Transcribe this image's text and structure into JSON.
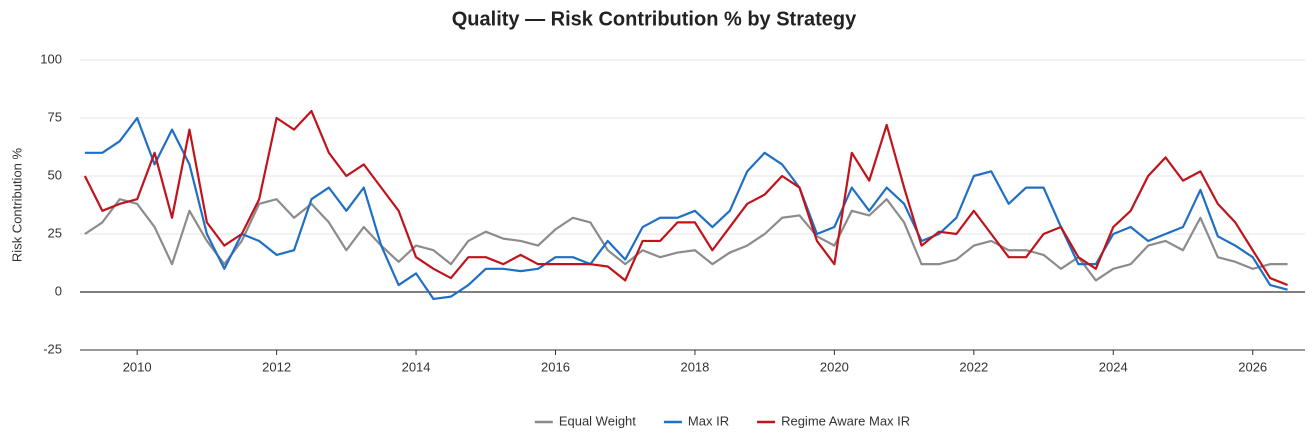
{
  "chart_data": {
    "type": "line",
    "title": "Quality — Risk Contribution % by Strategy",
    "ylabel": "Risk Contribution %",
    "x": [
      2009.25,
      2009.5,
      2009.75,
      2010,
      2010.25,
      2010.5,
      2010.75,
      2011,
      2011.25,
      2011.5,
      2011.75,
      2012,
      2012.25,
      2012.5,
      2012.75,
      2013,
      2013.25,
      2013.5,
      2013.75,
      2014,
      2014.25,
      2014.5,
      2014.75,
      2015,
      2015.25,
      2015.5,
      2015.75,
      2016,
      2016.25,
      2016.5,
      2016.75,
      2017,
      2017.25,
      2017.5,
      2017.75,
      2018,
      2018.25,
      2018.5,
      2018.75,
      2019,
      2019.25,
      2019.5,
      2019.75,
      2020,
      2020.25,
      2020.5,
      2020.75,
      2021,
      2021.25,
      2021.5,
      2021.75,
      2022,
      2022.25,
      2022.5,
      2022.75,
      2023,
      2023.25,
      2023.5,
      2023.75,
      2024,
      2024.25,
      2024.5,
      2024.75,
      2025,
      2025.25,
      2025.5,
      2025.75,
      2026,
      2026.25,
      2026.5
    ],
    "series": [
      {
        "name": "Equal Weight",
        "color": "#8c8c8c",
        "values": [
          25,
          30,
          40,
          38,
          28,
          12,
          35,
          22,
          12,
          22,
          38,
          40,
          32,
          38,
          30,
          18,
          28,
          20,
          13,
          20,
          18,
          12,
          22,
          26,
          23,
          22,
          20,
          27,
          32,
          30,
          18,
          12,
          18,
          15,
          17,
          18,
          12,
          17,
          20,
          25,
          32,
          33,
          24,
          20,
          35,
          33,
          40,
          30,
          12,
          12,
          14,
          20,
          22,
          18,
          18,
          16,
          10,
          15,
          5,
          10,
          12,
          20,
          22,
          18,
          32,
          15,
          13,
          10,
          12,
          12
        ]
      },
      {
        "name": "Max IR",
        "color": "#1f6fc5",
        "values": [
          60,
          60,
          65,
          75,
          55,
          70,
          55,
          25,
          10,
          25,
          22,
          16,
          18,
          40,
          45,
          35,
          45,
          20,
          3,
          8,
          -3,
          -2,
          3,
          10,
          10,
          9,
          10,
          15,
          15,
          12,
          22,
          14,
          28,
          32,
          32,
          35,
          28,
          35,
          52,
          60,
          55,
          45,
          25,
          28,
          45,
          35,
          45,
          38,
          22,
          25,
          32,
          50,
          52,
          38,
          45,
          45,
          28,
          12,
          12,
          25,
          28,
          22,
          25,
          28,
          44,
          24,
          20,
          15,
          3,
          1
        ]
      },
      {
        "name": "Regime Aware Max IR",
        "color": "#c0141c",
        "values": [
          50,
          35,
          38,
          40,
          60,
          32,
          70,
          30,
          20,
          25,
          40,
          75,
          70,
          78,
          60,
          50,
          55,
          45,
          35,
          15,
          10,
          6,
          15,
          15,
          12,
          16,
          12,
          12,
          12,
          12,
          11,
          5,
          22,
          22,
          30,
          30,
          18,
          28,
          38,
          42,
          50,
          45,
          22,
          12,
          60,
          48,
          72,
          45,
          20,
          26,
          25,
          35,
          25,
          15,
          15,
          25,
          28,
          15,
          10,
          28,
          35,
          50,
          58,
          48,
          52,
          38,
          30,
          18,
          6,
          3
        ]
      }
    ],
    "xlim": [
      2009.18,
      2026.75
    ],
    "xticks": [
      2010,
      2012,
      2014,
      2016,
      2018,
      2020,
      2022,
      2024,
      2026
    ],
    "ylim": [
      -25,
      100
    ],
    "yticks": [
      -25,
      0,
      25,
      50,
      75,
      100
    ],
    "grid": true,
    "legend": "bottom"
  }
}
